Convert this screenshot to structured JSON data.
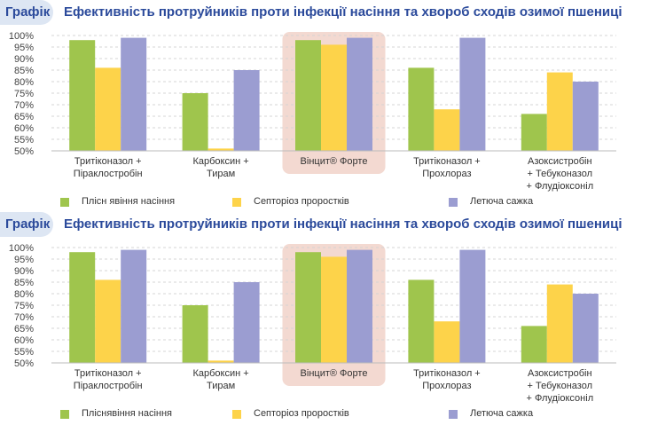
{
  "colors": {
    "series": [
      "#9fc54d",
      "#fdd34a",
      "#9b9dd1"
    ],
    "highlight": "#f3d9d1",
    "title": "#2b4a9b",
    "tag_bg": "#dde6f3"
  },
  "panels": [
    {
      "tag": "Графік",
      "title": "Ефективність протруйників проти інфекції насіння та хвороб сходів озимої пшениці"
    },
    {
      "tag": "Графік",
      "title": "Ефективність протруйників проти інфекції насіння та хвороб сходів озимої пшениці"
    }
  ],
  "chart_data": [
    {
      "type": "bar",
      "categories": [
        [
          "Тритіконазол +",
          "Піраклостробін"
        ],
        [
          "Карбоксин +",
          "Тирам"
        ],
        [
          "Вінцит® Форте"
        ],
        [
          "Тритіконазол +",
          "Прохлораз"
        ],
        [
          "Азоксистробін",
          "+ Тебуконазол",
          "+ Флудіоксоніл"
        ]
      ],
      "highlight_category": 2,
      "series": [
        {
          "name": "Плісн явіння насіння",
          "values": [
            98,
            75,
            98,
            86,
            66
          ]
        },
        {
          "name": "Септоріоз проростків",
          "values": [
            86,
            51,
            96,
            68,
            84
          ]
        },
        {
          "name": "Летюча сажка",
          "values": [
            99,
            85,
            99,
            99,
            80
          ]
        }
      ],
      "ylim": [
        50,
        100
      ],
      "yticks": [
        "50%",
        "55%",
        "60%",
        "65%",
        "70%",
        "75%",
        "80%",
        "85%",
        "90%",
        "95%",
        "100%"
      ],
      "grid": true,
      "legend_position": "bottom"
    },
    {
      "type": "bar",
      "categories": [
        [
          "Тритіконазол +",
          "Піраклостробін"
        ],
        [
          "Карбоксин +",
          "Тирам"
        ],
        [
          "Вінцит® Форте"
        ],
        [
          "Тритіконазол +",
          "Прохлораз"
        ],
        [
          "Азоксистробін",
          "+ Тебуконазол",
          "+ Флудіоксоніл"
        ]
      ],
      "highlight_category": 2,
      "series": [
        {
          "name": "Пліснявіння насіння",
          "values": [
            98,
            75,
            98,
            86,
            66
          ]
        },
        {
          "name": "Септоріоз проростків",
          "values": [
            86,
            51,
            96,
            68,
            84
          ]
        },
        {
          "name": "Летюча сажка",
          "values": [
            99,
            85,
            99,
            99,
            80
          ]
        }
      ],
      "ylim": [
        50,
        100
      ],
      "yticks": [
        "50%",
        "55%",
        "60%",
        "65%",
        "70%",
        "75%",
        "80%",
        "85%",
        "90%",
        "95%",
        "100%"
      ],
      "grid": true,
      "legend_position": "bottom"
    }
  ]
}
